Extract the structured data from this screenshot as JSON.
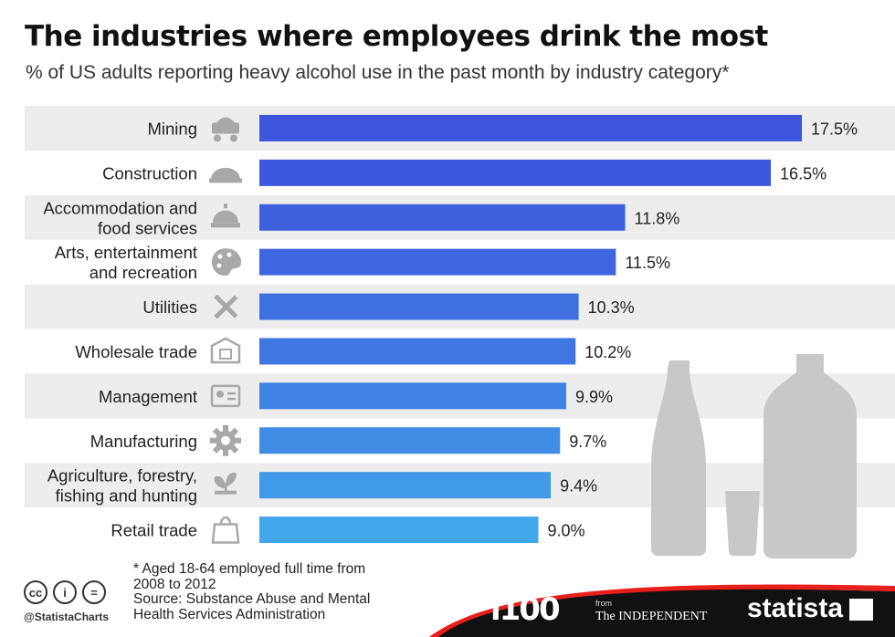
{
  "title": "The industries where employees drink the most",
  "subtitle": "% of US adults reporting heavy alcohol use in the past month by industry category*",
  "chart_data": {
    "type": "bar",
    "orientation": "horizontal",
    "categories": [
      "Mining",
      "Construction",
      "Accommodation and food services",
      "Arts, entertainment and recreation",
      "Utilities",
      "Wholesale trade",
      "Management",
      "Manufacturing",
      "Agriculture, forestry, fishing and hunting",
      "Retail trade"
    ],
    "category_lines": [
      [
        "Mining"
      ],
      [
        "Construction"
      ],
      [
        "Accommodation and",
        "food services"
      ],
      [
        "Arts, entertainment",
        "and recreation"
      ],
      [
        "Utilities"
      ],
      [
        "Wholesale trade"
      ],
      [
        "Management"
      ],
      [
        "Manufacturing"
      ],
      [
        "Agriculture, forestry,",
        "fishing and hunting"
      ],
      [
        "Retail trade"
      ]
    ],
    "values": [
      17.5,
      16.5,
      11.8,
      11.5,
      10.3,
      10.2,
      9.9,
      9.7,
      9.4,
      9.0
    ],
    "value_labels": [
      "17.5%",
      "16.5%",
      "11.8%",
      "11.5%",
      "10.3%",
      "10.2%",
      "9.9%",
      "9.7%",
      "9.4%",
      "9.0%"
    ],
    "icons": [
      "mining-cart-icon",
      "hard-hat-icon",
      "service-bell-icon",
      "palette-icon",
      "tools-icon",
      "warehouse-icon",
      "id-card-icon",
      "gear-icon",
      "plant-icon",
      "shopping-bag-icon"
    ],
    "bar_colors": [
      "#3d55dd",
      "#3d58dc",
      "#3e60dd",
      "#3f66de",
      "#3f70e0",
      "#3f76e1",
      "#3f82e3",
      "#408de5",
      "#409ae8",
      "#41a6ea"
    ],
    "xlim": [
      0,
      17.5
    ],
    "grid": false,
    "xlabel": "",
    "ylabel": ""
  },
  "footnote": [
    "* Aged 18-64 employed full time from",
    "2008 to 2012",
    "Source: Substance Abuse and Mental",
    "Health Services Administration"
  ],
  "credits": {
    "handle": "@StatistaCharts",
    "cc_icons": [
      "cc",
      "i",
      "="
    ],
    "brand_i100": "i100",
    "brand_from": "from",
    "brand_independent": "The INDEPENDENT",
    "brand_statista": "statista"
  },
  "colors": {
    "row_band": "#ededed",
    "footer_bg": "#111111",
    "footer_accent": "#e8201c",
    "bottle": "#c8c8c8"
  }
}
